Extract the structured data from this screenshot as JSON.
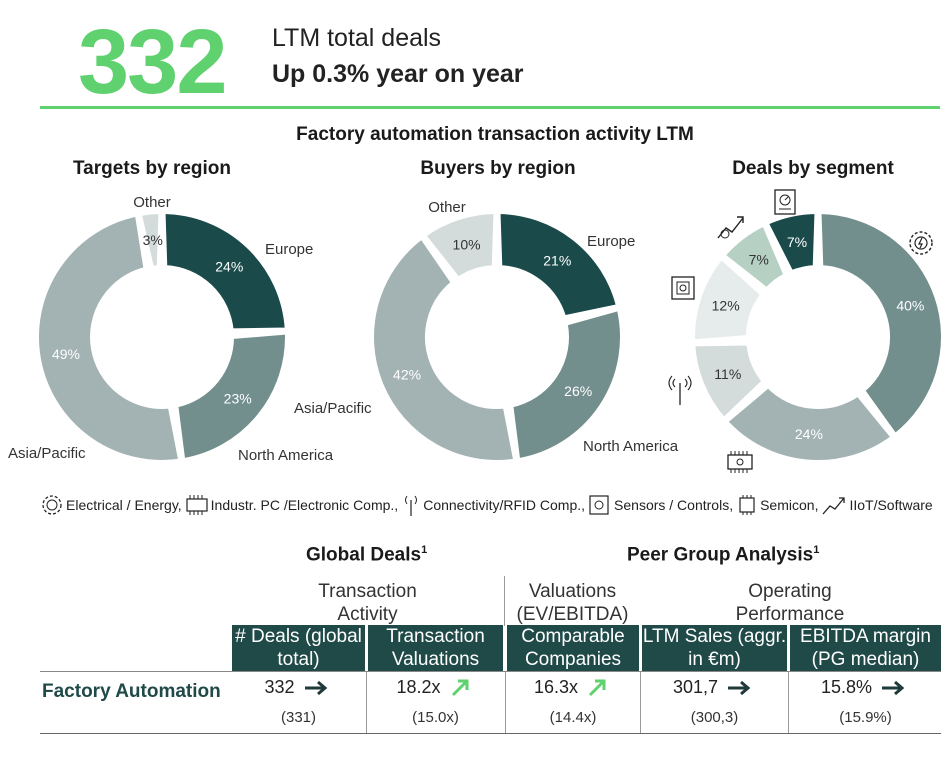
{
  "summary": {
    "big_number": "332",
    "line1": "LTM total deals",
    "line2": "Up 0.3% year on year"
  },
  "section_title": "Factory automation transaction activity LTM",
  "chart_data": [
    {
      "type": "pie",
      "title": "Targets by region",
      "categories": [
        "Europe",
        "North America",
        "Asia/Pacific",
        "Other"
      ],
      "values": [
        24,
        23,
        49,
        3
      ],
      "value_labels": [
        "24%",
        "23%",
        "49%",
        "3%"
      ],
      "colors": [
        "#1a4a4a",
        "#728e8d",
        "#a3b3b3",
        "#d3dbdb"
      ]
    },
    {
      "type": "pie",
      "title": "Buyers by region",
      "categories": [
        "Europe",
        "North America",
        "Asia/Pacific",
        "Other"
      ],
      "values": [
        21,
        26,
        42,
        10
      ],
      "value_labels": [
        "21%",
        "26%",
        "42%",
        "10%"
      ],
      "colors": [
        "#1a4a4a",
        "#728e8d",
        "#a3b3b3",
        "#d3dbdb"
      ]
    },
    {
      "type": "pie",
      "title": "Deals by segment",
      "categories": [
        "Electrical / Energy",
        "Industr. PC /Electronic Comp.",
        "Connectivity/RFID Comp.",
        "Sensors / Controls",
        "Semicon",
        "IIoT/Software"
      ],
      "values": [
        40,
        24,
        11,
        12,
        7,
        7
      ],
      "value_labels": [
        "40%",
        "24%",
        "11%",
        "12%",
        "7%",
        "7%"
      ],
      "colors": [
        "#728e8d",
        "#a3b3b3",
        "#d3dbdb",
        "#e6ecec",
        "#b6d0c4",
        "#1a4a4a"
      ],
      "icons": [
        "electrical-energy-icon",
        "industrial-pc-icon",
        "connectivity-rfid-icon",
        "sensors-controls-icon",
        "semicon-icon",
        "iiot-software-icon"
      ]
    }
  ],
  "legend": [
    {
      "icon": "electrical-energy-icon",
      "label": "Electrical / Energy,"
    },
    {
      "icon": "industrial-pc-icon",
      "label": "Industr. PC /Electronic Comp.,"
    },
    {
      "icon": "connectivity-rfid-icon",
      "label": "Connectivity/RFID Comp.,"
    },
    {
      "icon": "sensors-controls-icon",
      "label": "Sensors / Controls,"
    },
    {
      "icon": "semicon-icon",
      "label": "Semicon,"
    },
    {
      "icon": "iiot-software-icon",
      "label": "IIoT/Software"
    }
  ],
  "table": {
    "global_deals_title": "Global Deals",
    "peer_group_title": "Peer Group Analysis",
    "footnote_mark": "1",
    "groups": {
      "transaction_activity": "Transaction Activity",
      "valuations": "Valuations (EV/EBITDA)",
      "operating_performance": "Operating Performance"
    },
    "headers": [
      "# Deals (global total)",
      "Transaction Valuations",
      "Comparable Companies",
      "LTM Sales (aggr. in €m)",
      "EBITDA margin (PG median)"
    ],
    "row_label": "Factory Automation",
    "values": [
      "332",
      "18.2x",
      "16.3x",
      "301,7",
      "15.8%"
    ],
    "trends": [
      "flat",
      "up",
      "up",
      "flat",
      "flat"
    ],
    "previous": [
      "(331)",
      "(15.0x)",
      "(14.4x)",
      "(300,3)",
      "(15.9%)"
    ],
    "colors": {
      "header_bg": "#1f4a48",
      "arrow_flat": "#1f3a3a",
      "arrow_up": "#5fd16f"
    }
  }
}
